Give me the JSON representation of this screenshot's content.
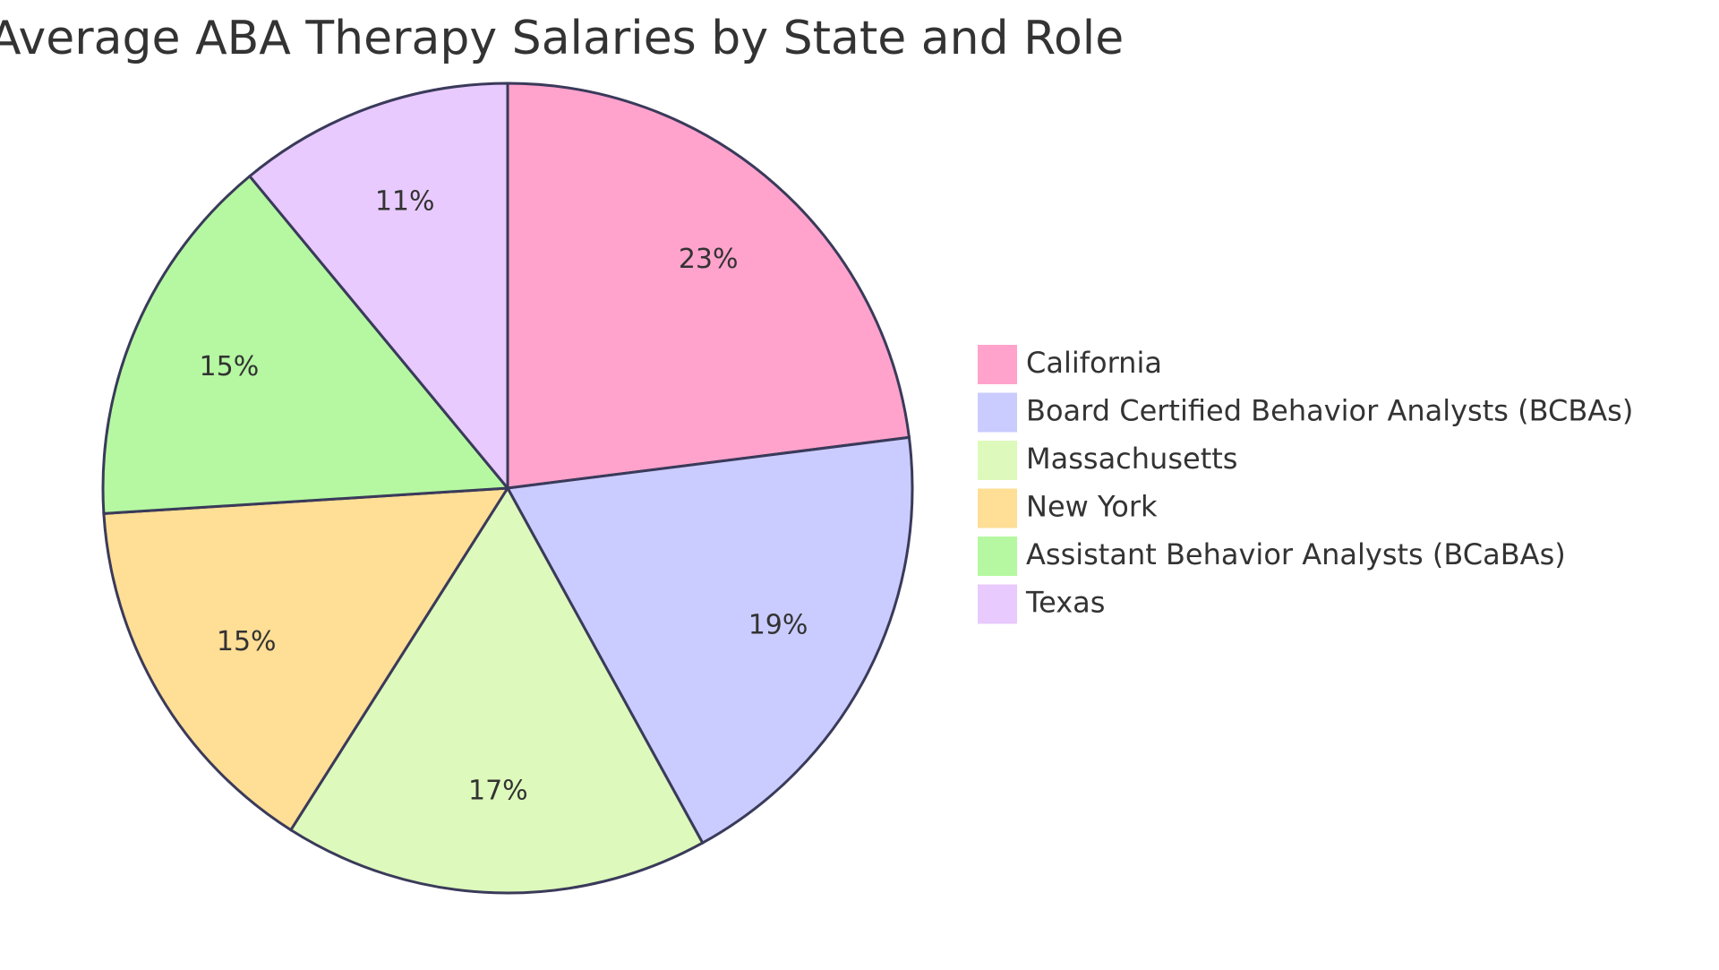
{
  "chart_data": {
    "type": "pie",
    "title": "Average ABA Therapy Salaries by State and Role",
    "slices": [
      {
        "label": "California",
        "value": 23,
        "display": "23%",
        "color": "#FFA3CC"
      },
      {
        "label": "Board Certified Behavior Analysts (BCBAs)",
        "value": 19,
        "display": "19%",
        "color": "#CACCFF"
      },
      {
        "label": "Massachusetts",
        "value": 17,
        "display": "17%",
        "color": "#DDF9BB"
      },
      {
        "label": "New York",
        "value": 15,
        "display": "15%",
        "color": "#FFDE95"
      },
      {
        "label": "Assistant Behavior Analysts (BCaBAs)",
        "value": 15,
        "display": "15%",
        "color": "#B5F8A1"
      },
      {
        "label": "Texas",
        "value": 11,
        "display": "11%",
        "color": "#E8CAFE"
      }
    ],
    "legend_position": "right",
    "stroke_color": "#3A3A5A"
  }
}
